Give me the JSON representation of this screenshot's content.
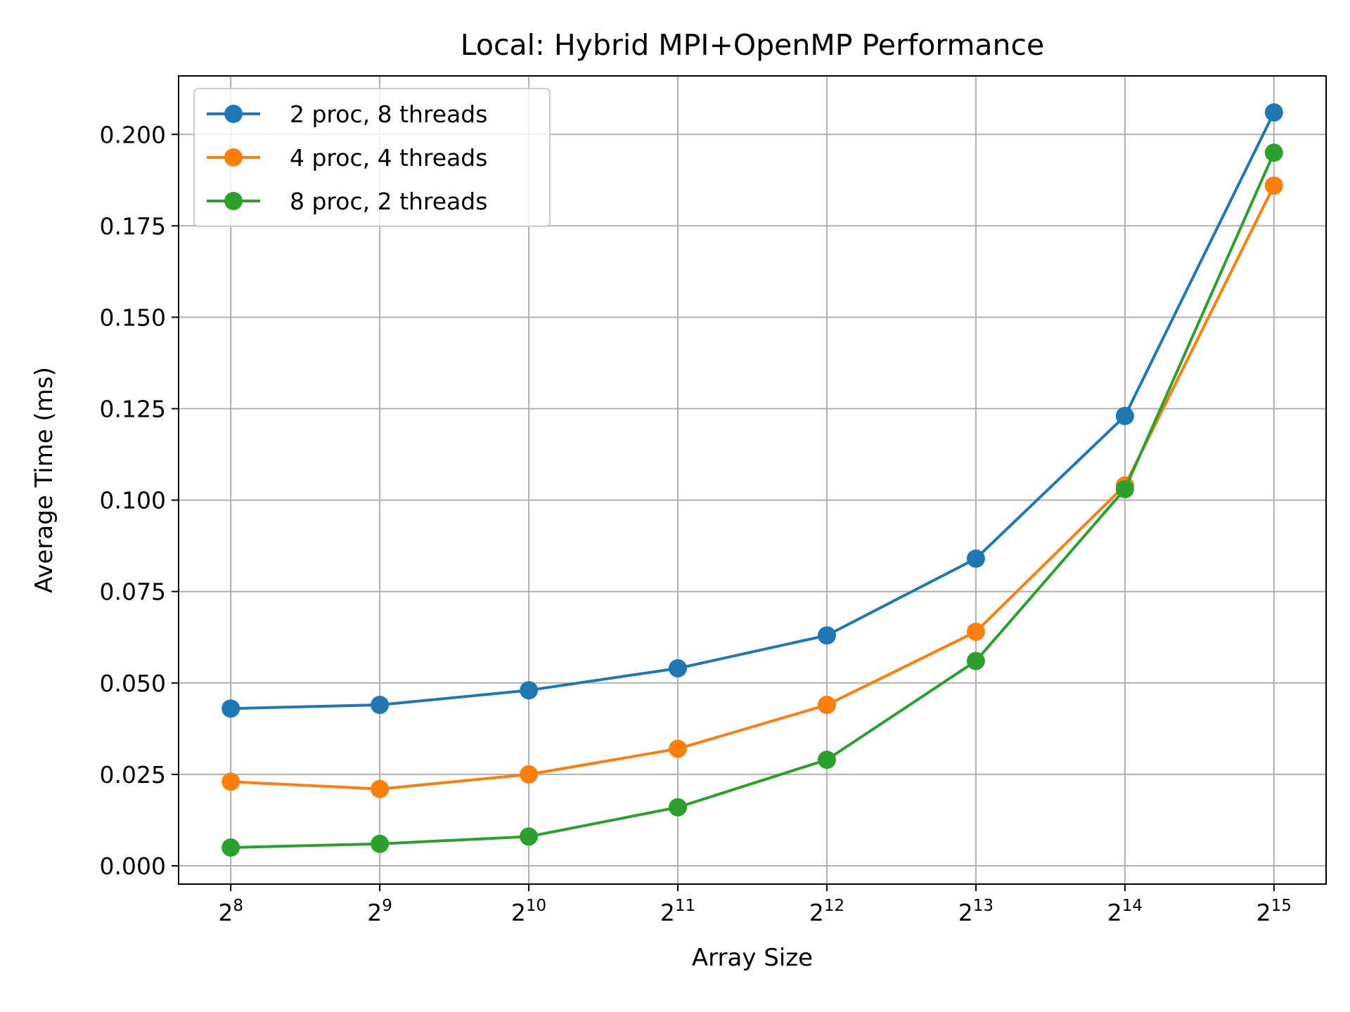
{
  "chart_data": {
    "type": "line",
    "title": "Local: Hybrid MPI+OpenMP Performance",
    "xlabel": "Array Size",
    "ylabel": "Average Time (ms)",
    "x_scale": "log2",
    "x": [
      256,
      512,
      1024,
      2048,
      4096,
      8192,
      16384,
      32768
    ],
    "x_tick_base": "2",
    "x_tick_exponents": [
      "8",
      "9",
      "10",
      "11",
      "12",
      "13",
      "14",
      "15"
    ],
    "ylim": [
      -0.005,
      0.216
    ],
    "y_ticks": [
      0.0,
      0.025,
      0.05,
      0.075,
      0.1,
      0.125,
      0.15,
      0.175,
      0.2
    ],
    "y_tick_labels": [
      "0.000",
      "0.025",
      "0.050",
      "0.075",
      "0.100",
      "0.125",
      "0.150",
      "0.175",
      "0.200"
    ],
    "grid": true,
    "legend_position": "top-left",
    "series": [
      {
        "name": "2 proc, 8 threads",
        "color": "#1f77b4",
        "values": [
          0.043,
          0.044,
          0.048,
          0.054,
          0.063,
          0.084,
          0.123,
          0.206
        ]
      },
      {
        "name": "4 proc, 4 threads",
        "color": "#ff7f0e",
        "values": [
          0.023,
          0.021,
          0.025,
          0.032,
          0.044,
          0.064,
          0.104,
          0.186
        ]
      },
      {
        "name": "8 proc, 2 threads",
        "color": "#2ca02c",
        "values": [
          0.005,
          0.006,
          0.008,
          0.016,
          0.029,
          0.056,
          0.103,
          0.195
        ]
      }
    ]
  }
}
